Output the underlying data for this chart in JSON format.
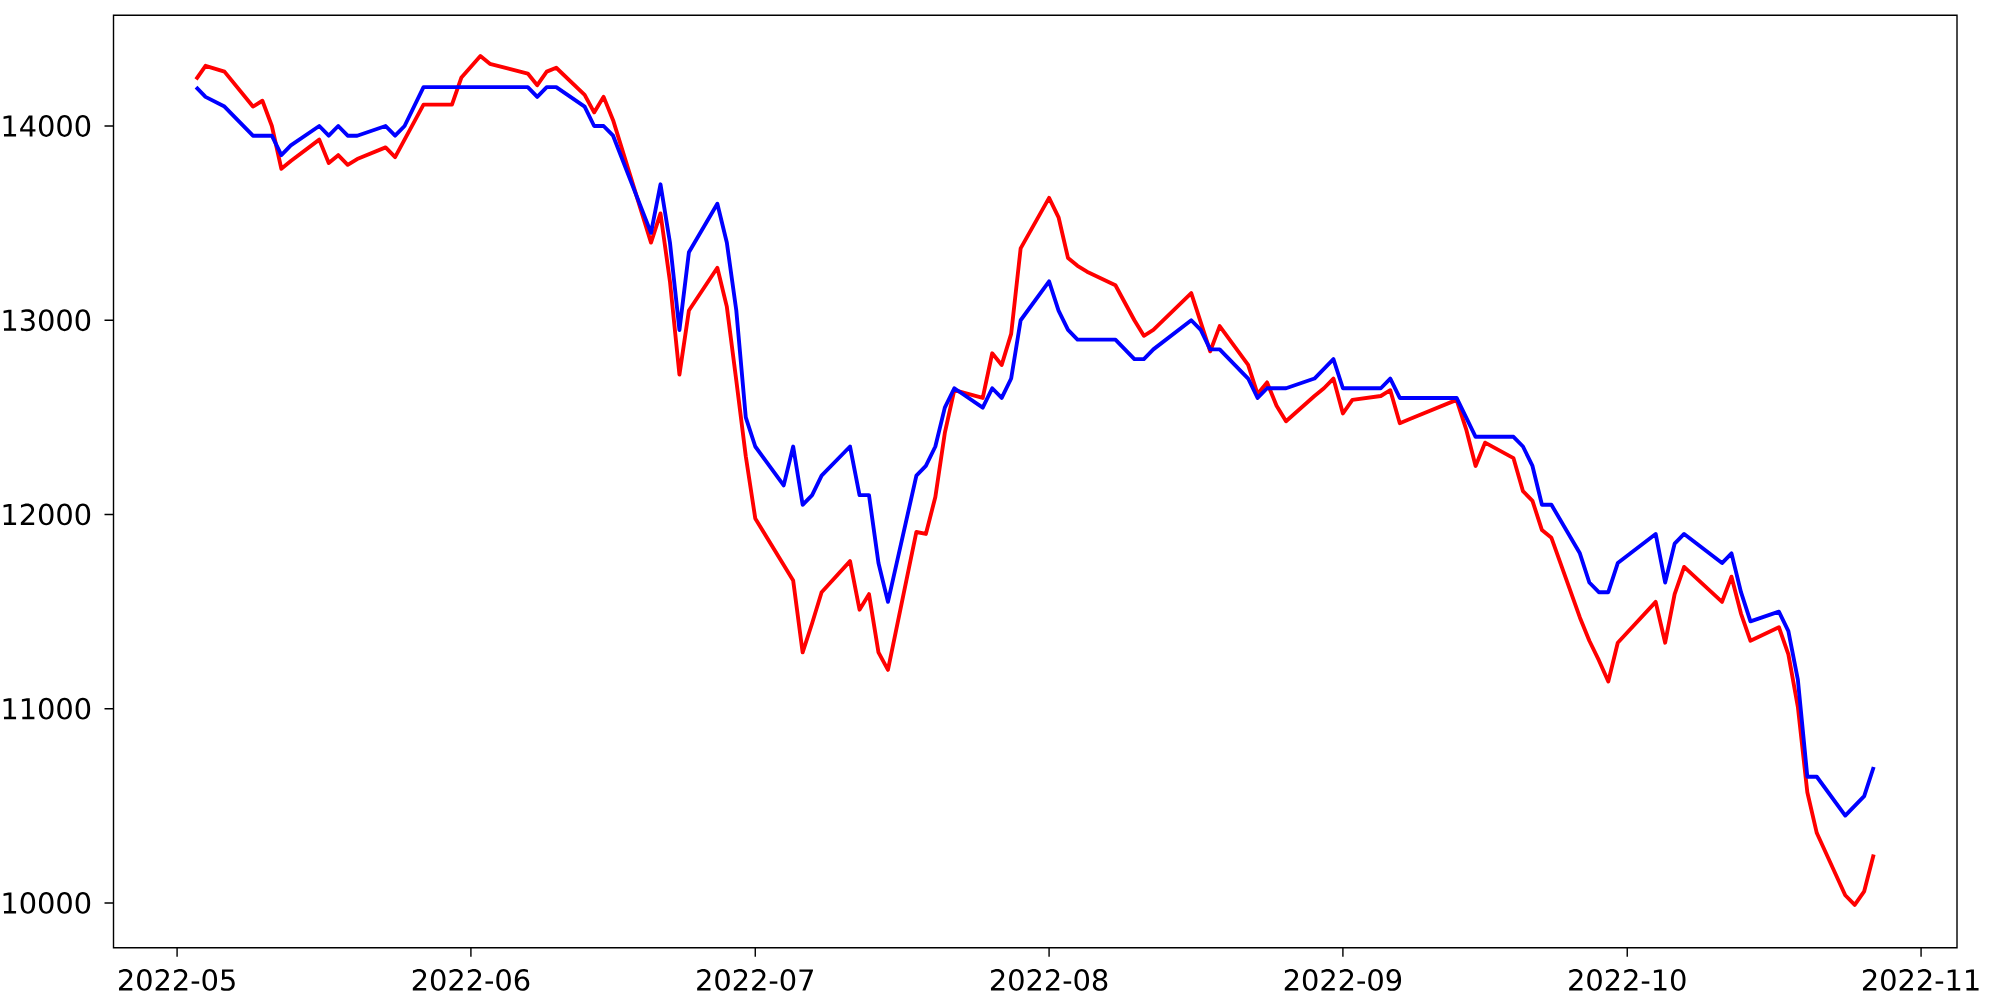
{
  "chart_data": {
    "type": "line",
    "xlim": [
      "2022-04-24T07:00",
      "2022-11-04T19:00"
    ],
    "xticks": [
      {
        "value": "2022-05-01",
        "label": "2022-05"
      },
      {
        "value": "2022-06-01",
        "label": "2022-06"
      },
      {
        "value": "2022-07-01",
        "label": "2022-07"
      },
      {
        "value": "2022-08-01",
        "label": "2022-08"
      },
      {
        "value": "2022-09-01",
        "label": "2022-09"
      },
      {
        "value": "2022-10-01",
        "label": "2022-10"
      },
      {
        "value": "2022-11-01",
        "label": "2022-11"
      }
    ],
    "ylim": [
      9770,
      14570
    ],
    "yticks": [
      10000,
      11000,
      12000,
      13000,
      14000
    ],
    "marker": "none",
    "line_style": "solid",
    "series": [
      {
        "color": "#ff0000",
        "x": [
          "2022-05-03",
          "2022-05-04",
          "2022-05-06",
          "2022-05-09",
          "2022-05-10",
          "2022-05-11",
          "2022-05-12",
          "2022-05-13",
          "2022-05-16",
          "2022-05-17",
          "2022-05-18",
          "2022-05-19",
          "2022-05-20",
          "2022-05-23",
          "2022-05-24",
          "2022-05-27",
          "2022-05-30",
          "2022-05-31",
          "2022-06-02",
          "2022-06-03",
          "2022-06-07",
          "2022-06-08",
          "2022-06-09",
          "2022-06-10",
          "2022-06-13",
          "2022-06-14",
          "2022-06-15",
          "2022-06-16",
          "2022-06-20",
          "2022-06-21",
          "2022-06-22",
          "2022-06-23",
          "2022-06-24",
          "2022-06-27",
          "2022-06-28",
          "2022-06-29",
          "2022-06-30",
          "2022-07-01",
          "2022-07-05",
          "2022-07-06",
          "2022-07-07",
          "2022-07-08",
          "2022-07-11",
          "2022-07-12",
          "2022-07-13",
          "2022-07-14",
          "2022-07-15",
          "2022-07-18",
          "2022-07-19",
          "2022-07-20",
          "2022-07-21",
          "2022-07-22",
          "2022-07-25",
          "2022-07-26",
          "2022-07-27",
          "2022-07-28",
          "2022-07-29",
          "2022-08-01",
          "2022-08-02",
          "2022-08-03",
          "2022-08-04",
          "2022-08-05",
          "2022-08-08",
          "2022-08-09",
          "2022-08-10",
          "2022-08-11",
          "2022-08-12",
          "2022-08-16",
          "2022-08-18",
          "2022-08-19",
          "2022-08-22",
          "2022-08-23",
          "2022-08-24",
          "2022-08-25",
          "2022-08-26",
          "2022-08-29",
          "2022-08-30",
          "2022-08-31",
          "2022-09-01",
          "2022-09-02",
          "2022-09-05",
          "2022-09-06",
          "2022-09-07",
          "2022-09-08",
          "2022-09-13",
          "2022-09-14",
          "2022-09-15",
          "2022-09-16",
          "2022-09-19",
          "2022-09-20",
          "2022-09-21",
          "2022-09-22",
          "2022-09-23",
          "2022-09-26",
          "2022-09-27",
          "2022-09-28",
          "2022-09-29",
          "2022-09-30",
          "2022-10-04",
          "2022-10-05",
          "2022-10-06",
          "2022-10-07",
          "2022-10-11",
          "2022-10-12",
          "2022-10-13",
          "2022-10-14",
          "2022-10-17",
          "2022-10-18",
          "2022-10-19",
          "2022-10-20",
          "2022-10-21",
          "2022-10-24",
          "2022-10-25",
          "2022-10-26",
          "2022-10-27"
        ],
        "values": [
          14240,
          14310,
          14280,
          14100,
          14130,
          14000,
          13780,
          13820,
          13930,
          13810,
          13850,
          13800,
          13830,
          13890,
          13840,
          14110,
          14110,
          14250,
          14360,
          14320,
          14270,
          14210,
          14280,
          14300,
          14160,
          14070,
          14150,
          14030,
          13400,
          13550,
          13200,
          12720,
          13050,
          13270,
          13070,
          12690,
          12300,
          11980,
          11660,
          11290,
          11440,
          11600,
          11760,
          11510,
          11590,
          11290,
          11200,
          11910,
          11900,
          12090,
          12420,
          12640,
          12600,
          12830,
          12770,
          12930,
          13370,
          13630,
          13530,
          13320,
          13280,
          13250,
          13180,
          13090,
          13000,
          12920,
          12950,
          13140,
          12840,
          12970,
          12770,
          12620,
          12680,
          12560,
          12480,
          12610,
          12650,
          12700,
          12520,
          12590,
          12610,
          12640,
          12470,
          12490,
          12590,
          12440,
          12250,
          12370,
          12290,
          12120,
          12070,
          11920,
          11880,
          11470,
          11350,
          11250,
          11140,
          11340,
          11550,
          11340,
          11590,
          11730,
          11550,
          11680,
          11490,
          11350,
          11420,
          11280,
          11010,
          10570,
          10360,
          10040,
          9990,
          10060,
          10250
        ]
      },
      {
        "color": "#0000ff",
        "x": [
          "2022-05-03",
          "2022-05-04",
          "2022-05-06",
          "2022-05-09",
          "2022-05-10",
          "2022-05-11",
          "2022-05-12",
          "2022-05-13",
          "2022-05-16",
          "2022-05-17",
          "2022-05-18",
          "2022-05-19",
          "2022-05-20",
          "2022-05-23",
          "2022-05-24",
          "2022-05-25",
          "2022-05-27",
          "2022-05-30",
          "2022-05-31",
          "2022-06-02",
          "2022-06-03",
          "2022-06-07",
          "2022-06-08",
          "2022-06-09",
          "2022-06-10",
          "2022-06-13",
          "2022-06-14",
          "2022-06-15",
          "2022-06-16",
          "2022-06-20",
          "2022-06-21",
          "2022-06-22",
          "2022-06-23",
          "2022-06-24",
          "2022-06-27",
          "2022-06-28",
          "2022-06-29",
          "2022-06-30",
          "2022-07-01",
          "2022-07-04",
          "2022-07-05",
          "2022-07-06",
          "2022-07-07",
          "2022-07-08",
          "2022-07-11",
          "2022-07-12",
          "2022-07-13",
          "2022-07-14",
          "2022-07-15",
          "2022-07-18",
          "2022-07-19",
          "2022-07-20",
          "2022-07-21",
          "2022-07-22",
          "2022-07-25",
          "2022-07-26",
          "2022-07-27",
          "2022-07-28",
          "2022-07-29",
          "2022-08-01",
          "2022-08-02",
          "2022-08-03",
          "2022-08-04",
          "2022-08-05",
          "2022-08-08",
          "2022-08-09",
          "2022-08-10",
          "2022-08-11",
          "2022-08-12",
          "2022-08-16",
          "2022-08-17",
          "2022-08-18",
          "2022-08-19",
          "2022-08-22",
          "2022-08-23",
          "2022-08-24",
          "2022-08-25",
          "2022-08-26",
          "2022-08-29",
          "2022-08-31",
          "2022-09-01",
          "2022-09-02",
          "2022-09-05",
          "2022-09-06",
          "2022-09-07",
          "2022-09-08",
          "2022-09-13",
          "2022-09-14",
          "2022-09-15",
          "2022-09-16",
          "2022-09-19",
          "2022-09-20",
          "2022-09-21",
          "2022-09-22",
          "2022-09-23",
          "2022-09-26",
          "2022-09-27",
          "2022-09-28",
          "2022-09-29",
          "2022-09-30",
          "2022-10-04",
          "2022-10-05",
          "2022-10-06",
          "2022-10-07",
          "2022-10-11",
          "2022-10-12",
          "2022-10-13",
          "2022-10-14",
          "2022-10-17",
          "2022-10-18",
          "2022-10-19",
          "2022-10-20",
          "2022-10-21",
          "2022-10-24",
          "2022-10-26",
          "2022-10-27"
        ],
        "values": [
          14200,
          14150,
          14100,
          13950,
          13950,
          13950,
          13850,
          13900,
          14000,
          13950,
          14000,
          13950,
          13950,
          14000,
          13950,
          14000,
          14200,
          14200,
          14200,
          14200,
          14200,
          14200,
          14150,
          14200,
          14200,
          14100,
          14000,
          14000,
          13950,
          13450,
          13700,
          13400,
          12950,
          13350,
          13600,
          13400,
          13050,
          12500,
          12350,
          12150,
          12350,
          12050,
          12100,
          12200,
          12350,
          12100,
          12100,
          11750,
          11550,
          12200,
          12250,
          12350,
          12550,
          12650,
          12550,
          12650,
          12600,
          12700,
          13000,
          13200,
          13050,
          12950,
          12900,
          12900,
          12900,
          12850,
          12800,
          12800,
          12850,
          13000,
          12950,
          12850,
          12850,
          12700,
          12600,
          12650,
          12650,
          12650,
          12700,
          12800,
          12650,
          12650,
          12650,
          12700,
          12600,
          12600,
          12600,
          12500,
          12400,
          12400,
          12400,
          12350,
          12250,
          12050,
          12050,
          11800,
          11650,
          11600,
          11600,
          11750,
          11900,
          11650,
          11850,
          11900,
          11750,
          11800,
          11600,
          11450,
          11500,
          11400,
          11150,
          10650,
          10650,
          10450,
          10550,
          10700
        ]
      }
    ]
  }
}
